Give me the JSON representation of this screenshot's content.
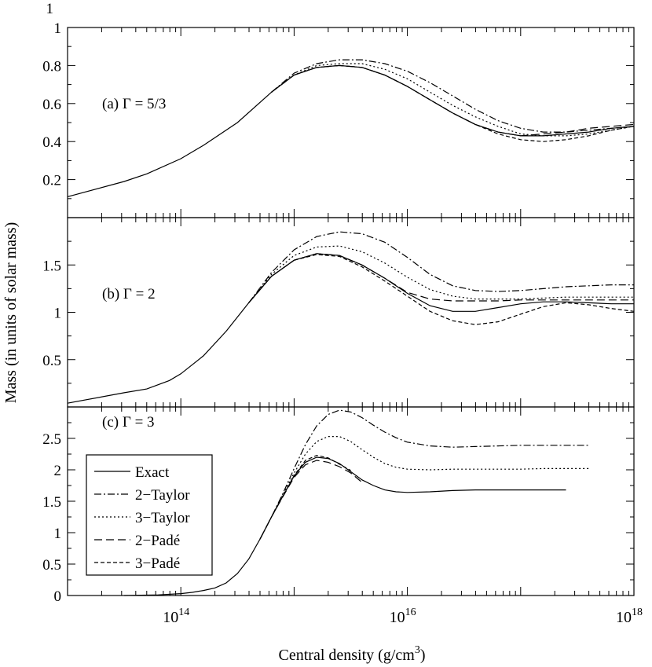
{
  "chart_data": {
    "type": "line",
    "xlabel": "Central density (g/cm",
    "xlabel_superscript": "3",
    "xlabel_suffix": ")",
    "ylabel": "Mass (in units of solar mass)",
    "x_scale": "log",
    "xlim_log10": [
      13,
      18
    ],
    "x_tick_labels": [
      {
        "log10": 14,
        "base": "10",
        "exp": "14"
      },
      {
        "log10": 16,
        "base": "10",
        "exp": "16"
      },
      {
        "log10": 18,
        "base": "10",
        "exp": "18"
      }
    ],
    "styles": {
      "Exact": "",
      "2-Taylor": "9 3 2 3",
      "3-Taylor": "2 3",
      "2-Padé": "10 5",
      "3-Padé": "5 3"
    },
    "legend": {
      "panel": 2,
      "placement": "left",
      "entries": [
        "Exact",
        "2−Taylor",
        "3−Taylor",
        "2−Padé",
        "3−Padé"
      ],
      "series_keys": [
        "Exact",
        "2-Taylor",
        "3-Taylor",
        "2-Padé",
        "3-Padé"
      ]
    },
    "panels": [
      {
        "label": "(a) Γ = 5/3",
        "ylim": [
          0,
          1
        ],
        "y_ticks": [
          {
            "value": 0.2,
            "label": "0.2"
          },
          {
            "value": 0.4,
            "label": "0.4"
          },
          {
            "value": 0.6,
            "label": "0.6"
          },
          {
            "value": 0.8,
            "label": "0.8"
          },
          {
            "value": 1.0,
            "label": "1"
          }
        ],
        "series": [
          {
            "name": "Exact",
            "x_log10": [
              13,
              13.5,
              13.7,
              14,
              14.2,
              14.5,
              14.8,
              15,
              15.2,
              15.4,
              15.6,
              15.8,
              16,
              16.2,
              16.4,
              16.6,
              16.8,
              17,
              17.2,
              17.4,
              17.6,
              17.8,
              18
            ],
            "y": [
              0.11,
              0.19,
              0.23,
              0.31,
              0.38,
              0.5,
              0.66,
              0.75,
              0.79,
              0.8,
              0.79,
              0.75,
              0.69,
              0.62,
              0.55,
              0.49,
              0.45,
              0.43,
              0.43,
              0.44,
              0.45,
              0.47,
              0.48
            ]
          },
          {
            "name": "2-Taylor",
            "x_log10": [
              14.8,
              15,
              15.2,
              15.4,
              15.6,
              15.8,
              16,
              16.2,
              16.4,
              16.6,
              16.8,
              17,
              17.2,
              17.4,
              17.6,
              17.8,
              18
            ],
            "y": [
              0.66,
              0.76,
              0.81,
              0.83,
              0.83,
              0.81,
              0.77,
              0.71,
              0.64,
              0.57,
              0.51,
              0.47,
              0.45,
              0.45,
              0.46,
              0.47,
              0.48
            ]
          },
          {
            "name": "3-Taylor",
            "x_log10": [
              14.8,
              15,
              15.2,
              15.4,
              15.6,
              15.8,
              16,
              16.2,
              16.4,
              16.6,
              16.8,
              17,
              17.2,
              17.4,
              17.6,
              17.8,
              18
            ],
            "y": [
              0.66,
              0.75,
              0.8,
              0.81,
              0.81,
              0.78,
              0.73,
              0.66,
              0.59,
              0.53,
              0.48,
              0.44,
              0.43,
              0.43,
              0.44,
              0.46,
              0.48
            ]
          },
          {
            "name": "2-Padé",
            "x_log10": [
              14.8,
              15,
              15.2,
              15.4,
              15.6,
              15.8,
              16,
              16.2,
              16.4,
              16.6,
              16.8,
              17,
              17.2,
              17.4,
              17.6,
              17.8,
              18
            ],
            "y": [
              0.66,
              0.75,
              0.79,
              0.8,
              0.79,
              0.75,
              0.69,
              0.62,
              0.55,
              0.49,
              0.45,
              0.43,
              0.44,
              0.45,
              0.47,
              0.48,
              0.49
            ]
          },
          {
            "name": "3-Padé",
            "x_log10": [
              14.8,
              15,
              15.2,
              15.4,
              15.6,
              15.8,
              16,
              16.2,
              16.4,
              16.6,
              16.8,
              17,
              17.2,
              17.4,
              17.6,
              17.8,
              18
            ],
            "y": [
              0.66,
              0.75,
              0.79,
              0.8,
              0.79,
              0.75,
              0.69,
              0.62,
              0.55,
              0.49,
              0.44,
              0.41,
              0.4,
              0.41,
              0.43,
              0.46,
              0.48
            ]
          }
        ]
      },
      {
        "label": "(b) Γ = 2",
        "ylim": [
          0,
          2
        ],
        "y_ticks": [
          {
            "value": 0.5,
            "label": "0.5"
          },
          {
            "value": 1.0,
            "label": "1"
          },
          {
            "value": 1.5,
            "label": "1.5"
          }
        ],
        "series": [
          {
            "name": "Exact",
            "x_log10": [
              13,
              13.5,
              13.7,
              13.9,
              14,
              14.2,
              14.4,
              14.6,
              14.8,
              15,
              15.2,
              15.4,
              15.6,
              15.8,
              16,
              16.2,
              16.4,
              16.6,
              16.8,
              17,
              17.2,
              17.4,
              17.6,
              17.8,
              18
            ],
            "y": [
              0.04,
              0.15,
              0.19,
              0.28,
              0.35,
              0.54,
              0.8,
              1.1,
              1.38,
              1.55,
              1.62,
              1.6,
              1.5,
              1.36,
              1.2,
              1.07,
              1.01,
              1.01,
              1.05,
              1.09,
              1.11,
              1.11,
              1.1,
              1.09,
              1.09
            ]
          },
          {
            "name": "2-Taylor",
            "x_log10": [
              14.6,
              14.8,
              15,
              15.2,
              15.4,
              15.6,
              15.8,
              16,
              16.2,
              16.4,
              16.6,
              16.8,
              17,
              17.2,
              17.4,
              17.6,
              17.8,
              18
            ],
            "y": [
              1.1,
              1.42,
              1.66,
              1.8,
              1.85,
              1.83,
              1.74,
              1.58,
              1.4,
              1.28,
              1.23,
              1.22,
              1.23,
              1.25,
              1.27,
              1.28,
              1.29,
              1.29
            ]
          },
          {
            "name": "3-Taylor",
            "x_log10": [
              14.6,
              14.8,
              15,
              15.2,
              15.4,
              15.6,
              15.8,
              16,
              16.2,
              16.4,
              16.6,
              16.8,
              17,
              17.2,
              17.4,
              17.6,
              17.8,
              18
            ],
            "y": [
              1.1,
              1.4,
              1.6,
              1.69,
              1.7,
              1.64,
              1.52,
              1.37,
              1.24,
              1.17,
              1.14,
              1.14,
              1.14,
              1.15,
              1.16,
              1.16,
              1.16,
              1.16
            ]
          },
          {
            "name": "2-Padé",
            "x_log10": [
              14.6,
              14.8,
              15,
              15.2,
              15.4,
              15.6,
              15.8,
              16,
              16.2,
              16.4,
              16.6,
              16.8,
              17,
              17.2,
              17.4,
              17.6,
              17.8,
              18
            ],
            "y": [
              1.1,
              1.38,
              1.55,
              1.62,
              1.6,
              1.5,
              1.36,
              1.21,
              1.14,
              1.12,
              1.12,
              1.12,
              1.13,
              1.13,
              1.13,
              1.13,
              1.13,
              1.13
            ]
          },
          {
            "name": "3-Padé",
            "x_log10": [
              14.6,
              14.8,
              15,
              15.2,
              15.4,
              15.6,
              15.8,
              16,
              16.2,
              16.4,
              16.6,
              16.8,
              17,
              17.2,
              17.4,
              17.6,
              17.8,
              18
            ],
            "y": [
              1.1,
              1.38,
              1.55,
              1.61,
              1.59,
              1.48,
              1.33,
              1.17,
              1.01,
              0.91,
              0.87,
              0.9,
              0.98,
              1.06,
              1.1,
              1.08,
              1.04,
              1.01
            ]
          }
        ]
      },
      {
        "label": "(c) Γ = 3",
        "ylim": [
          0,
          3
        ],
        "y_ticks": [
          {
            "value": 0,
            "label": "0"
          },
          {
            "value": 0.5,
            "label": "0.5"
          },
          {
            "value": 1.0,
            "label": "1"
          },
          {
            "value": 1.5,
            "label": "1.5"
          },
          {
            "value": 2.0,
            "label": "2"
          },
          {
            "value": 2.5,
            "label": "2.5"
          }
        ],
        "series": [
          {
            "name": "Exact",
            "x_log10": [
              13.5,
              13.8,
              14,
              14.1,
              14.2,
              14.3,
              14.4,
              14.5,
              14.6,
              14.7,
              14.8,
              14.9,
              15,
              15.1,
              15.2,
              15.3,
              15.4,
              15.5,
              15.6,
              15.7,
              15.8,
              15.9,
              16,
              16.2,
              16.4,
              16.6,
              16.8,
              17,
              17.2,
              17.4
            ],
            "y": [
              0,
              0.01,
              0.03,
              0.05,
              0.08,
              0.12,
              0.2,
              0.35,
              0.58,
              0.9,
              1.25,
              1.58,
              1.9,
              2.12,
              2.2,
              2.18,
              2.1,
              1.97,
              1.84,
              1.75,
              1.68,
              1.65,
              1.64,
              1.65,
              1.67,
              1.68,
              1.68,
              1.68,
              1.68,
              1.68
            ]
          },
          {
            "name": "2-Taylor",
            "x_log10": [
              14.7,
              14.8,
              14.9,
              15,
              15.1,
              15.2,
              15.3,
              15.4,
              15.5,
              15.6,
              15.7,
              15.8,
              15.9,
              16,
              16.2,
              16.4,
              16.6,
              16.8,
              17,
              17.2,
              17.4,
              17.6
            ],
            "y": [
              0.9,
              1.25,
              1.62,
              2.02,
              2.4,
              2.7,
              2.88,
              2.95,
              2.92,
              2.83,
              2.71,
              2.6,
              2.51,
              2.44,
              2.38,
              2.36,
              2.37,
              2.38,
              2.39,
              2.39,
              2.39,
              2.39
            ]
          },
          {
            "name": "3-Taylor",
            "x_log10": [
              14.7,
              14.8,
              14.9,
              15,
              15.1,
              15.2,
              15.3,
              15.4,
              15.5,
              15.6,
              15.7,
              15.8,
              15.9,
              16,
              16.2,
              16.4,
              16.6,
              16.8,
              17,
              17.2,
              17.4,
              17.6
            ],
            "y": [
              0.9,
              1.25,
              1.6,
              1.95,
              2.25,
              2.45,
              2.53,
              2.53,
              2.45,
              2.32,
              2.2,
              2.1,
              2.04,
              2.01,
              2.0,
              2.01,
              2.01,
              2.01,
              2.01,
              2.02,
              2.02,
              2.02
            ]
          },
          {
            "name": "2-Padé",
            "x_log10": [
              14.7,
              14.8,
              14.9,
              15,
              15.1,
              15.2,
              15.3,
              15.4,
              15.5,
              15.6
            ],
            "y": [
              0.9,
              1.25,
              1.57,
              1.88,
              2.08,
              2.15,
              2.12,
              2.05,
              1.95,
              1.8
            ]
          },
          {
            "name": "3-Padé",
            "x_log10": [
              14.7,
              14.8,
              14.9,
              15,
              15.1,
              15.2,
              15.3,
              15.4,
              15.5
            ],
            "y": [
              0.9,
              1.25,
              1.58,
              1.91,
              2.15,
              2.23,
              2.19,
              2.09,
              1.99
            ]
          }
        ]
      }
    ]
  }
}
